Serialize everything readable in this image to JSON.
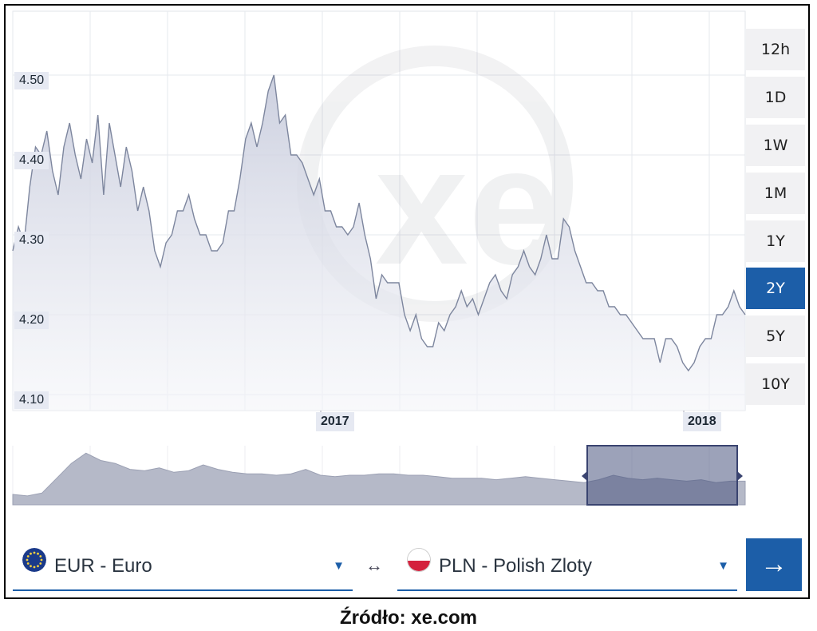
{
  "chart_data": {
    "type": "area",
    "title": "",
    "xlabel": "",
    "ylabel": "",
    "ylim": [
      4.08,
      4.58
    ],
    "y_ticks": [
      4.5,
      4.4,
      4.3,
      4.2,
      4.1
    ],
    "y_tick_labels": [
      "4.50",
      "4.40",
      "4.30",
      "4.20",
      "4.10"
    ],
    "x_tick_labels": [
      "2017",
      "2018"
    ],
    "x_range": [
      "2016-03",
      "2018-03"
    ],
    "grid": true,
    "colors": {
      "line": "#7d869e",
      "fill": "#e4e6ef",
      "accent": "#1c5ea8"
    },
    "series": [
      {
        "values": [
          4.28,
          4.31,
          4.29,
          4.36,
          4.41,
          4.4,
          4.43,
          4.38,
          4.35,
          4.41,
          4.44,
          4.4,
          4.37,
          4.42,
          4.39,
          4.45,
          4.35,
          4.44,
          4.4,
          4.36,
          4.41,
          4.38,
          4.33,
          4.36,
          4.33,
          4.28,
          4.26,
          4.29,
          4.3,
          4.33,
          4.33,
          4.35,
          4.32,
          4.3,
          4.3,
          4.28,
          4.28,
          4.29,
          4.33,
          4.33,
          4.37,
          4.42,
          4.44,
          4.41,
          4.44,
          4.48,
          4.5,
          4.44,
          4.45,
          4.4,
          4.4,
          4.39,
          4.37,
          4.35,
          4.37,
          4.33,
          4.33,
          4.31,
          4.31,
          4.3,
          4.31,
          4.34,
          4.3,
          4.27,
          4.22,
          4.25,
          4.24,
          4.24,
          4.24,
          4.2,
          4.18,
          4.2,
          4.17,
          4.16,
          4.16,
          4.19,
          4.18,
          4.2,
          4.21,
          4.23,
          4.21,
          4.22,
          4.2,
          4.22,
          4.24,
          4.25,
          4.23,
          4.22,
          4.25,
          4.26,
          4.28,
          4.26,
          4.25,
          4.27,
          4.3,
          4.27,
          4.27,
          4.32,
          4.31,
          4.28,
          4.26,
          4.24,
          4.24,
          4.23,
          4.23,
          4.21,
          4.21,
          4.2,
          4.2,
          4.19,
          4.18,
          4.17,
          4.17,
          4.17,
          4.14,
          4.17,
          4.17,
          4.16,
          4.14,
          4.13,
          4.14,
          4.16,
          4.17,
          4.17,
          4.2,
          4.2,
          4.21,
          4.23,
          4.21,
          4.2
        ]
      }
    ]
  },
  "range_buttons": [
    "12h",
    "1D",
    "1W",
    "1M",
    "1Y",
    "2Y",
    "5Y",
    "10Y"
  ],
  "active_range": "2Y",
  "navigator": {
    "values": [
      4.17,
      4.16,
      4.18,
      4.28,
      4.38,
      4.45,
      4.4,
      4.38,
      4.34,
      4.33,
      4.35,
      4.32,
      4.33,
      4.37,
      4.34,
      4.32,
      4.31,
      4.31,
      4.3,
      4.31,
      4.34,
      4.3,
      4.29,
      4.3,
      4.3,
      4.31,
      4.31,
      4.3,
      4.3,
      4.29,
      4.28,
      4.28,
      4.28,
      4.27,
      4.28,
      4.29,
      4.28,
      4.27,
      4.26,
      4.25,
      4.27,
      4.3,
      4.28,
      4.27,
      4.28,
      4.27,
      4.26,
      4.27,
      4.25,
      4.26,
      4.26
    ]
  },
  "from_currency": {
    "label": "EUR - Euro",
    "flag": "eu-flag-icon"
  },
  "to_currency": {
    "label": "PLN - Polish Zloty",
    "flag": "poland-flag-icon"
  },
  "swap_symbol": "↔",
  "go_symbol": "→",
  "caption": "Źródło: xe.com"
}
